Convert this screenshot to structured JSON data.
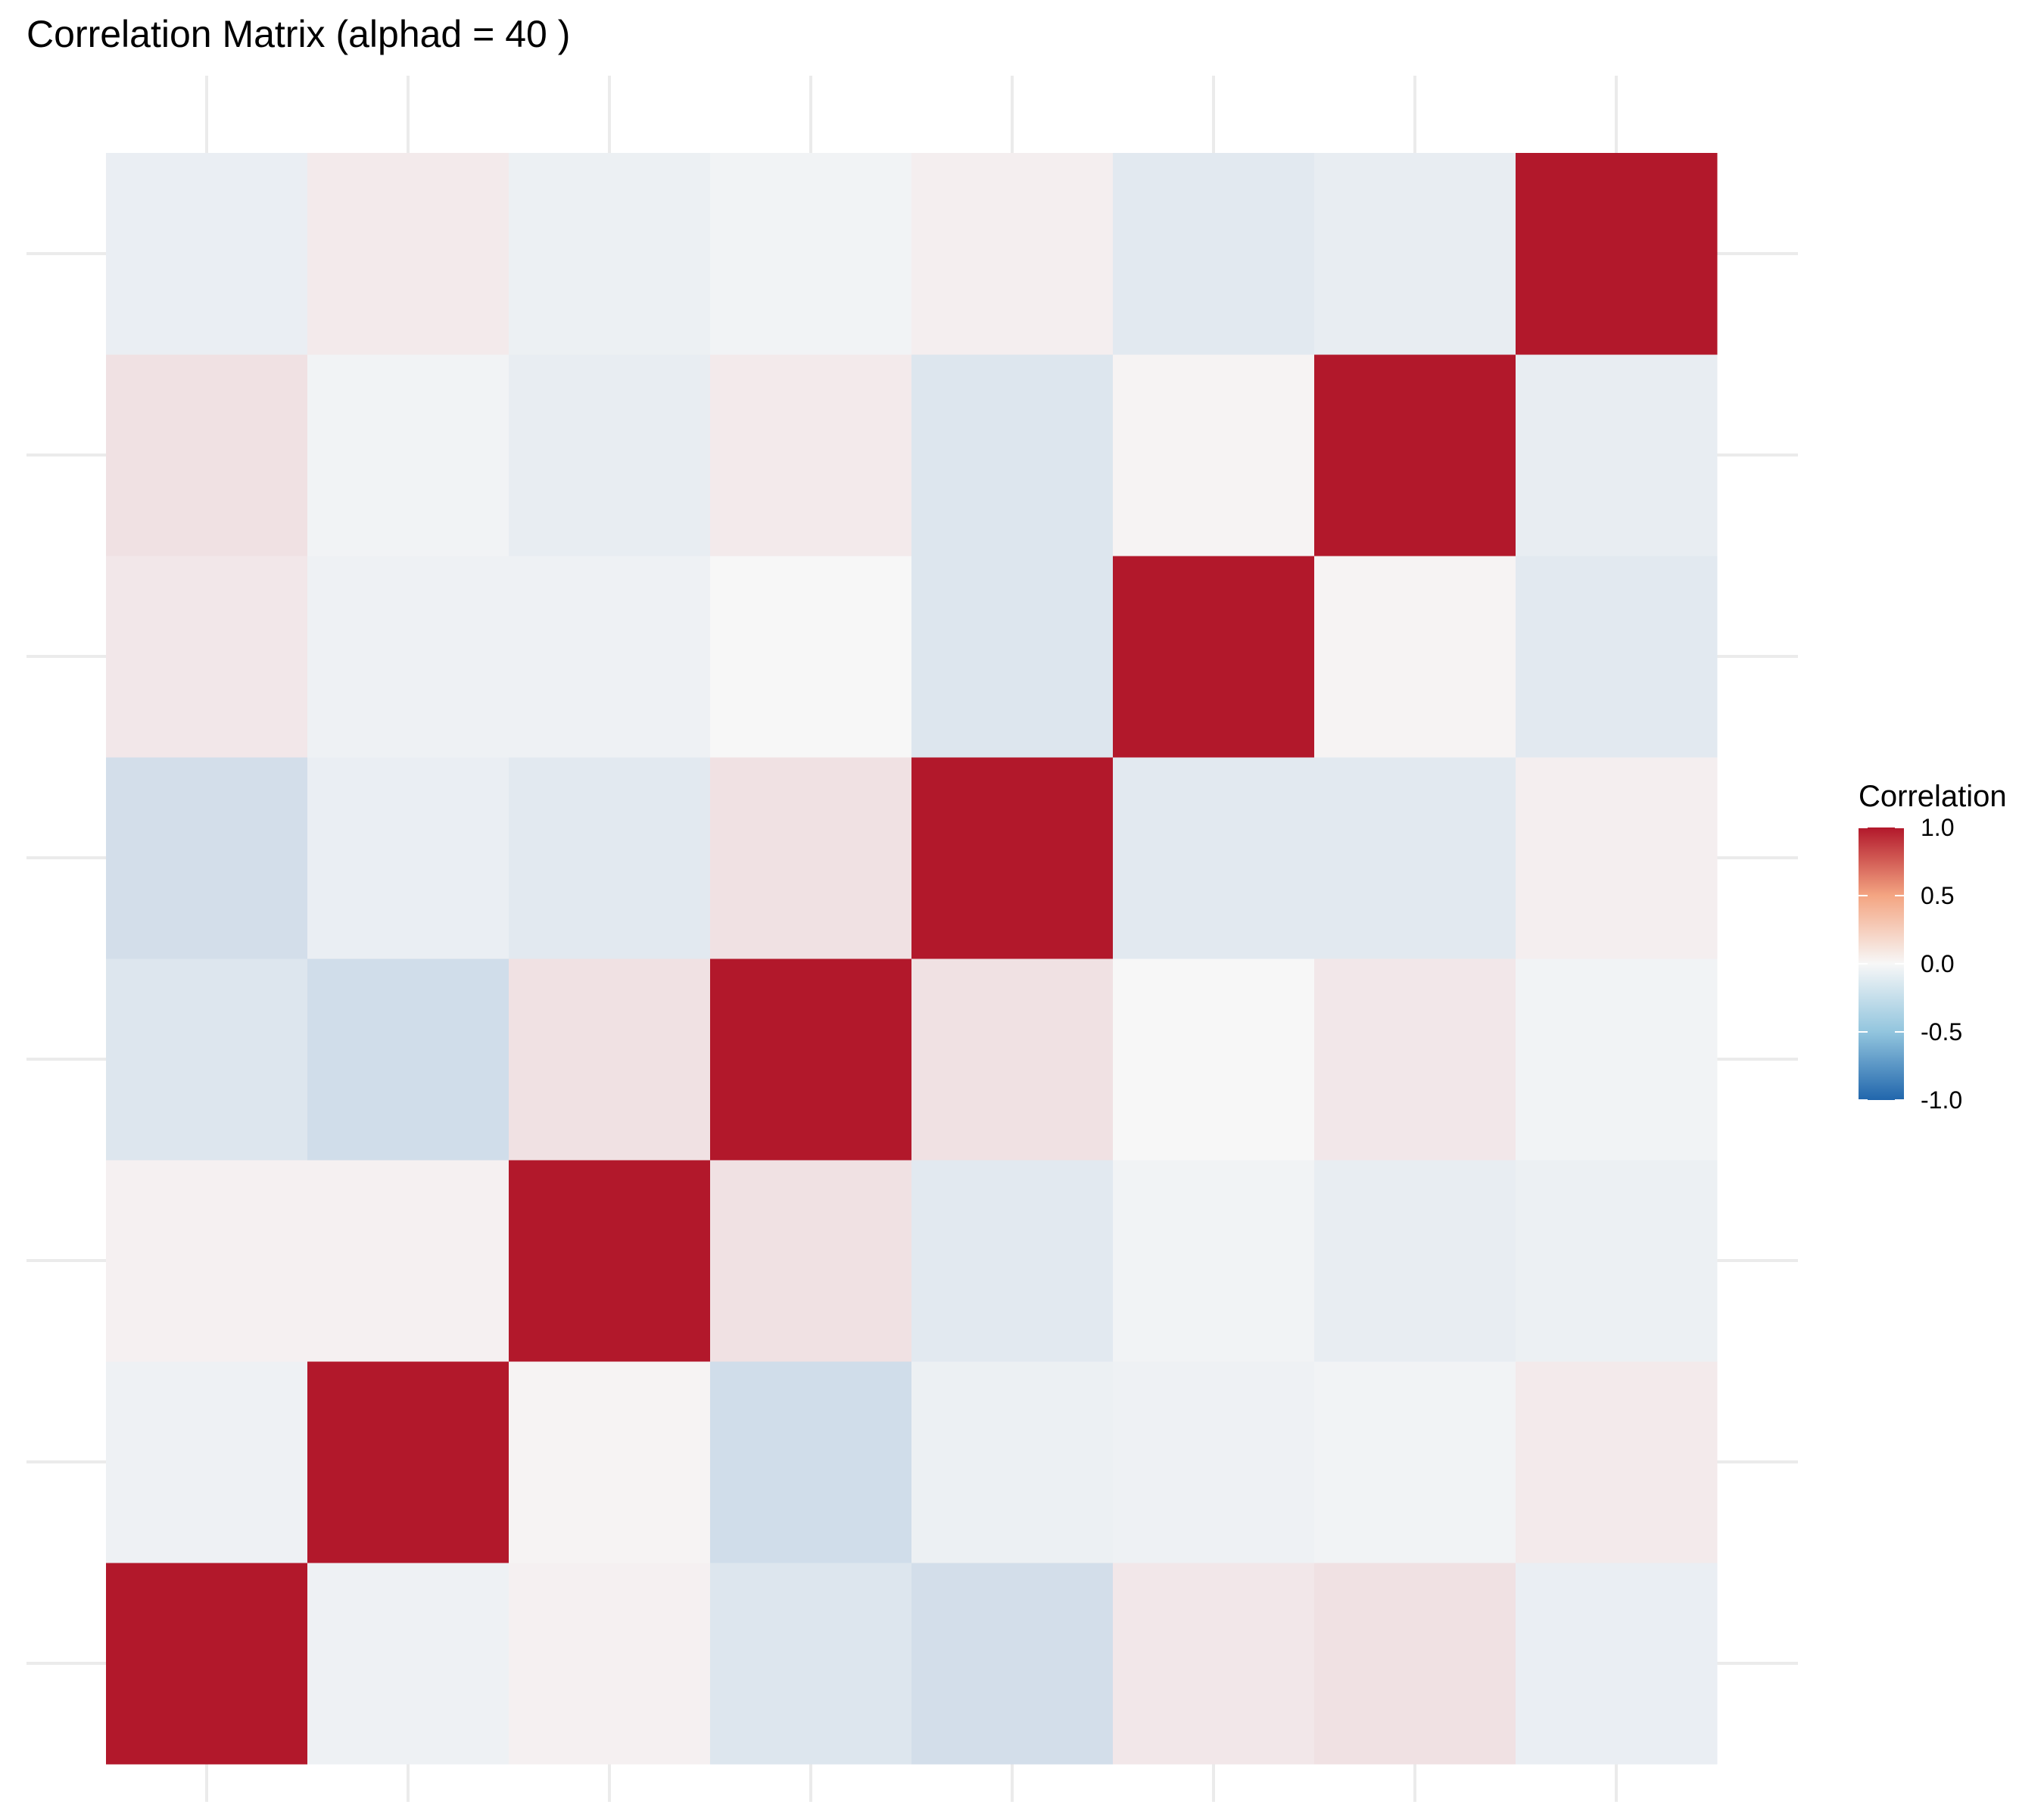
{
  "chart_data": {
    "type": "heatmap",
    "title": "Correlation Matrix (alphad = 40 )",
    "xlabel": "",
    "ylabel": "",
    "size": 8,
    "matrix": [
      [
        1.0,
        -0.04,
        0.03,
        -0.12,
        -0.17,
        0.07,
        0.1,
        -0.06
      ],
      [
        -0.04,
        1.0,
        0.02,
        -0.18,
        -0.05,
        -0.04,
        -0.03,
        0.06
      ],
      [
        0.03,
        0.03,
        1.0,
        0.1,
        -0.1,
        -0.03,
        -0.07,
        -0.05
      ],
      [
        -0.12,
        -0.18,
        0.1,
        1.0,
        0.1,
        0.0,
        0.07,
        -0.03
      ],
      [
        -0.17,
        -0.06,
        -0.1,
        0.1,
        1.0,
        -0.1,
        -0.1,
        0.04
      ],
      [
        0.07,
        -0.04,
        -0.04,
        0.0,
        -0.12,
        1.0,
        0.02,
        -0.1
      ],
      [
        0.1,
        -0.03,
        -0.07,
        0.06,
        -0.12,
        0.02,
        1.0,
        -0.07
      ],
      [
        -0.06,
        0.06,
        -0.05,
        -0.03,
        0.04,
        -0.1,
        -0.07,
        1.0
      ]
    ],
    "color_scale": {
      "low": "#2166AC",
      "mid": "#F7F7F7",
      "high": "#B2182B",
      "limits": [
        -1,
        1
      ]
    },
    "legend": {
      "title": "Correlation",
      "ticks": [
        "1.0",
        "0.5",
        "0.0",
        "-0.5",
        "-1.0"
      ],
      "tick_values": [
        1.0,
        0.5,
        0.0,
        -0.5,
        -1.0
      ],
      "position": "right"
    },
    "grid": true
  }
}
